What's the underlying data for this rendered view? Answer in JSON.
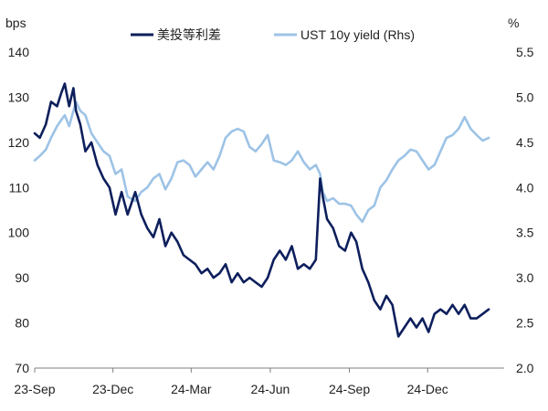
{
  "chart_data": {
    "type": "line",
    "left_axis": {
      "unit_label": "bps",
      "ylim": [
        70,
        140
      ],
      "ticks": [
        70,
        80,
        90,
        100,
        110,
        120,
        130,
        140
      ],
      "tick_labels": [
        "70",
        "80",
        "90",
        "100",
        "110",
        "120",
        "130",
        "140"
      ]
    },
    "right_axis": {
      "unit_label": "%",
      "ylim": [
        2.0,
        5.5
      ],
      "ticks": [
        2.0,
        2.5,
        3.0,
        3.5,
        4.0,
        4.5,
        5.0,
        5.5
      ],
      "tick_labels": [
        "2.0",
        "2.5",
        "3.0",
        "3.5",
        "4.0",
        "4.5",
        "5.0",
        "5.5"
      ]
    },
    "x_axis": {
      "range": [
        "2023-09-01",
        "2025-02-28"
      ],
      "ticks": [
        "2023-09-01",
        "2023-12-01",
        "2024-03-01",
        "2024-06-01",
        "2024-09-01",
        "2024-12-01"
      ],
      "tick_labels": [
        "23-Sep",
        "23-Dec",
        "24-Mar",
        "24-Jun",
        "24-Sep",
        "24-Dec"
      ]
    },
    "grid": false,
    "legend_position": "top-center",
    "series": [
      {
        "name": "美投等利差",
        "axis": "left",
        "color": "#0d1f5c",
        "points": [
          [
            "2023-09-01",
            122
          ],
          [
            "2023-09-07",
            121
          ],
          [
            "2023-09-14",
            124
          ],
          [
            "2023-09-20",
            129
          ],
          [
            "2023-09-27",
            128
          ],
          [
            "2023-10-02",
            131
          ],
          [
            "2023-10-06",
            133
          ],
          [
            "2023-10-11",
            128
          ],
          [
            "2023-10-16",
            132
          ],
          [
            "2023-10-19",
            127
          ],
          [
            "2023-10-24",
            124
          ],
          [
            "2023-10-30",
            118
          ],
          [
            "2023-11-06",
            120
          ],
          [
            "2023-11-13",
            115
          ],
          [
            "2023-11-20",
            112
          ],
          [
            "2023-11-27",
            110
          ],
          [
            "2023-12-04",
            104
          ],
          [
            "2023-12-11",
            109
          ],
          [
            "2023-12-18",
            104
          ],
          [
            "2023-12-27",
            109
          ],
          [
            "2024-01-03",
            104
          ],
          [
            "2024-01-10",
            101
          ],
          [
            "2024-01-17",
            99
          ],
          [
            "2024-01-24",
            103
          ],
          [
            "2024-01-31",
            97
          ],
          [
            "2024-02-07",
            100
          ],
          [
            "2024-02-14",
            98
          ],
          [
            "2024-02-21",
            95
          ],
          [
            "2024-02-28",
            94
          ],
          [
            "2024-03-06",
            93
          ],
          [
            "2024-03-13",
            91
          ],
          [
            "2024-03-20",
            92
          ],
          [
            "2024-03-27",
            90
          ],
          [
            "2024-04-03",
            91
          ],
          [
            "2024-04-10",
            93
          ],
          [
            "2024-04-17",
            89
          ],
          [
            "2024-04-24",
            91
          ],
          [
            "2024-05-01",
            89
          ],
          [
            "2024-05-08",
            90
          ],
          [
            "2024-05-15",
            89
          ],
          [
            "2024-05-22",
            88
          ],
          [
            "2024-05-29",
            90
          ],
          [
            "2024-06-05",
            94
          ],
          [
            "2024-06-12",
            96
          ],
          [
            "2024-06-19",
            94
          ],
          [
            "2024-06-26",
            97
          ],
          [
            "2024-07-03",
            92
          ],
          [
            "2024-07-10",
            93
          ],
          [
            "2024-07-17",
            92
          ],
          [
            "2024-07-24",
            94
          ],
          [
            "2024-07-29",
            112
          ],
          [
            "2024-08-01",
            108
          ],
          [
            "2024-08-06",
            103
          ],
          [
            "2024-08-13",
            101
          ],
          [
            "2024-08-20",
            97
          ],
          [
            "2024-08-27",
            96
          ],
          [
            "2024-09-03",
            100
          ],
          [
            "2024-09-09",
            98
          ],
          [
            "2024-09-16",
            92
          ],
          [
            "2024-09-23",
            89
          ],
          [
            "2024-09-30",
            85
          ],
          [
            "2024-10-07",
            83
          ],
          [
            "2024-10-14",
            86
          ],
          [
            "2024-10-21",
            84
          ],
          [
            "2024-10-28",
            77
          ],
          [
            "2024-11-04",
            79
          ],
          [
            "2024-11-11",
            81
          ],
          [
            "2024-11-18",
            79
          ],
          [
            "2024-11-25",
            81
          ],
          [
            "2024-12-02",
            78
          ],
          [
            "2024-12-09",
            82
          ],
          [
            "2024-12-16",
            83
          ],
          [
            "2024-12-23",
            82
          ],
          [
            "2024-12-30",
            84
          ],
          [
            "2025-01-06",
            82
          ],
          [
            "2025-01-13",
            84
          ],
          [
            "2025-01-20",
            81
          ],
          [
            "2025-01-27",
            81
          ],
          [
            "2025-02-03",
            82
          ],
          [
            "2025-02-10",
            83
          ]
        ]
      },
      {
        "name": "UST 10y yield (Rhs)",
        "axis": "right",
        "color": "#9dc3e6",
        "points": [
          [
            "2023-09-01",
            4.3
          ],
          [
            "2023-09-07",
            4.35
          ],
          [
            "2023-09-14",
            4.42
          ],
          [
            "2023-09-20",
            4.55
          ],
          [
            "2023-09-27",
            4.68
          ],
          [
            "2023-10-02",
            4.75
          ],
          [
            "2023-10-06",
            4.8
          ],
          [
            "2023-10-11",
            4.68
          ],
          [
            "2023-10-16",
            4.85
          ],
          [
            "2023-10-19",
            4.95
          ],
          [
            "2023-10-24",
            4.85
          ],
          [
            "2023-10-30",
            4.8
          ],
          [
            "2023-11-06",
            4.6
          ],
          [
            "2023-11-13",
            4.5
          ],
          [
            "2023-11-20",
            4.4
          ],
          [
            "2023-11-27",
            4.35
          ],
          [
            "2023-12-04",
            4.15
          ],
          [
            "2023-12-11",
            4.2
          ],
          [
            "2023-12-18",
            3.9
          ],
          [
            "2023-12-27",
            3.85
          ],
          [
            "2024-01-03",
            3.95
          ],
          [
            "2024-01-10",
            4.0
          ],
          [
            "2024-01-17",
            4.1
          ],
          [
            "2024-01-24",
            4.15
          ],
          [
            "2024-01-31",
            3.98
          ],
          [
            "2024-02-07",
            4.1
          ],
          [
            "2024-02-14",
            4.28
          ],
          [
            "2024-02-21",
            4.3
          ],
          [
            "2024-02-28",
            4.25
          ],
          [
            "2024-03-06",
            4.12
          ],
          [
            "2024-03-13",
            4.2
          ],
          [
            "2024-03-20",
            4.28
          ],
          [
            "2024-03-27",
            4.2
          ],
          [
            "2024-04-03",
            4.35
          ],
          [
            "2024-04-10",
            4.55
          ],
          [
            "2024-04-17",
            4.62
          ],
          [
            "2024-04-24",
            4.65
          ],
          [
            "2024-05-01",
            4.62
          ],
          [
            "2024-05-08",
            4.45
          ],
          [
            "2024-05-15",
            4.4
          ],
          [
            "2024-05-22",
            4.48
          ],
          [
            "2024-05-29",
            4.58
          ],
          [
            "2024-06-05",
            4.3
          ],
          [
            "2024-06-12",
            4.28
          ],
          [
            "2024-06-19",
            4.25
          ],
          [
            "2024-06-26",
            4.3
          ],
          [
            "2024-07-03",
            4.4
          ],
          [
            "2024-07-10",
            4.28
          ],
          [
            "2024-07-17",
            4.2
          ],
          [
            "2024-07-24",
            4.25
          ],
          [
            "2024-07-29",
            4.15
          ],
          [
            "2024-08-01",
            3.95
          ],
          [
            "2024-08-06",
            3.85
          ],
          [
            "2024-08-13",
            3.88
          ],
          [
            "2024-08-20",
            3.82
          ],
          [
            "2024-08-27",
            3.82
          ],
          [
            "2024-09-03",
            3.8
          ],
          [
            "2024-09-09",
            3.7
          ],
          [
            "2024-09-16",
            3.62
          ],
          [
            "2024-09-23",
            3.75
          ],
          [
            "2024-09-30",
            3.8
          ],
          [
            "2024-10-07",
            4.0
          ],
          [
            "2024-10-14",
            4.08
          ],
          [
            "2024-10-21",
            4.2
          ],
          [
            "2024-10-28",
            4.3
          ],
          [
            "2024-11-04",
            4.35
          ],
          [
            "2024-11-11",
            4.42
          ],
          [
            "2024-11-18",
            4.4
          ],
          [
            "2024-11-25",
            4.3
          ],
          [
            "2024-12-02",
            4.2
          ],
          [
            "2024-12-09",
            4.25
          ],
          [
            "2024-12-16",
            4.4
          ],
          [
            "2024-12-23",
            4.55
          ],
          [
            "2024-12-30",
            4.58
          ],
          [
            "2025-01-06",
            4.65
          ],
          [
            "2025-01-13",
            4.78
          ],
          [
            "2025-01-20",
            4.65
          ],
          [
            "2025-01-27",
            4.58
          ],
          [
            "2025-02-03",
            4.52
          ],
          [
            "2025-02-10",
            4.55
          ]
        ]
      }
    ]
  }
}
